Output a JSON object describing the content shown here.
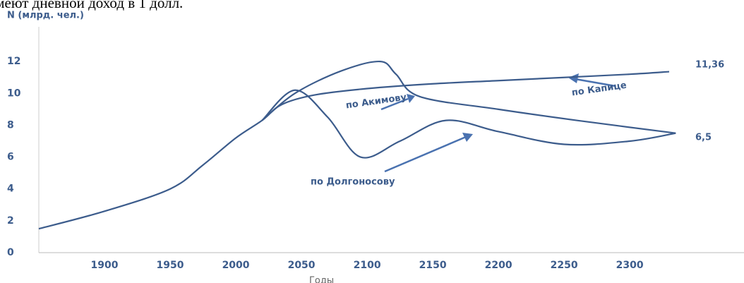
{
  "header_text": "имеют дневной доход в 1 долл.",
  "chart_data": {
    "type": "line",
    "y_label": "N (млрд. чел.)",
    "x_label": "Годы",
    "xlim": [
      1850,
      2380
    ],
    "ylim": [
      0,
      14
    ],
    "xticks": [
      1900,
      1950,
      2000,
      2050,
      2100,
      2150,
      2200,
      2250,
      2300
    ],
    "yticks": [
      0,
      2,
      4,
      6,
      8,
      10,
      12
    ],
    "grid": false,
    "series": [
      {
        "color": "#3c5c8c",
        "x": [
          1850,
          1900,
          1950,
          1975,
          2000,
          2020,
          2035,
          2060,
          2100,
          2150,
          2200,
          2250,
          2300,
          2330
        ],
        "values": [
          1.5,
          2.6,
          4,
          5.5,
          7.2,
          8.3,
          9.3,
          9.9,
          10.3,
          10.6,
          10.8,
          11.0,
          11.2,
          11.36
        ]
      },
      {
        "color": "#3c5c8c",
        "x": [
          2020,
          2045,
          2080,
          2110,
          2122,
          2140,
          2200,
          2260,
          2335
        ],
        "values": [
          8.3,
          10.0,
          11.4,
          12.0,
          11.2,
          9.8,
          9.0,
          8.3,
          7.5
        ]
      },
      {
        "color": "#3c5c8c",
        "x": [
          2020,
          2045,
          2070,
          2095,
          2125,
          2160,
          2200,
          2250,
          2300,
          2335
        ],
        "values": [
          8.3,
          10.2,
          8.5,
          6.0,
          7.0,
          8.3,
          7.6,
          6.8,
          7.0,
          7.5
        ]
      }
    ],
    "annotations": [
      "по Акимову",
      "по Долгоносову",
      "по Капице",
      "11,36",
      "6,5"
    ]
  }
}
